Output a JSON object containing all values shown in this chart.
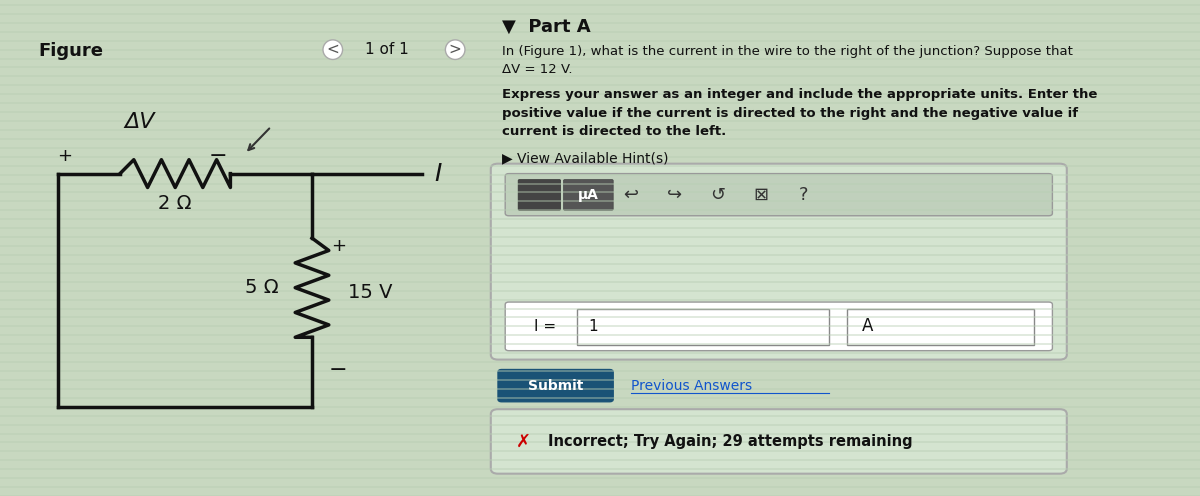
{
  "bg_left": "#ccdec8",
  "bg_right": "#ccdec8",
  "fig_width": 12.0,
  "fig_height": 4.96,
  "figure_label": "Figure",
  "figure_nav": "1 of 1",
  "part_a_label": "▼  Part A",
  "question_text_line1": "In (Figure 1), what is the current in the wire to the right of the junction? Suppose that",
  "question_text_line2": "ΔV = 12 V.",
  "bold_text_line1": "Express your answer as an integer and include the appropriate units. Enter the",
  "bold_text_line2": "positive value if the current is directed to the right and the negative value if",
  "bold_text_line3": "current is directed to the left.",
  "hint_text": "▶ View Available Hint(s)",
  "input_label": "I =",
  "input_value": "1",
  "unit_value": "A",
  "submit_text": "Submit",
  "prev_answers_text": "Previous Answers",
  "incorrect_text": "Incorrect; Try Again; 29 attempts remaining",
  "circuit_label_dv": "ΔV",
  "circuit_label_2ohm": "2 Ω",
  "circuit_label_5ohm": "5 Ω",
  "circuit_label_15v": "15 V",
  "circuit_label_I": "I",
  "circuit_plus1": "+",
  "circuit_minus1": "−",
  "circuit_plus2": "+",
  "circuit_minus2": "−"
}
